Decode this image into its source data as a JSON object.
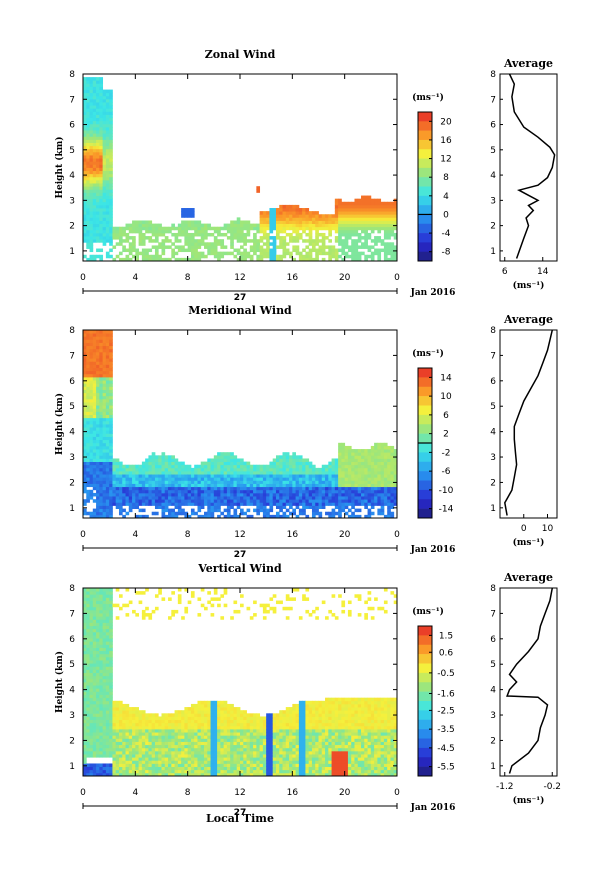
{
  "page": {
    "bottom_label": "Local Time",
    "day_label": "27",
    "month_label": "Jan 2016"
  },
  "chart_data": [
    {
      "type": "heatmap",
      "title": "Zonal Wind",
      "ylabel": "Height (km)",
      "unit_label": "(ms⁻¹)",
      "x_ticks": [
        "0",
        "4",
        "8",
        "12",
        "16",
        "20",
        "0"
      ],
      "xlim": [
        0,
        24
      ],
      "y_ticks": [
        "1",
        "2",
        "3",
        "4",
        "5",
        "6",
        "7",
        "8"
      ],
      "ylim": [
        0.6,
        8
      ],
      "colorbar": {
        "ticks": [
          "20",
          "16",
          "12",
          "8",
          "4",
          "0",
          "-4",
          "-8"
        ],
        "range": [
          -10,
          22
        ],
        "zero_line": 0
      },
      "average": {
        "title": "Average",
        "x_ticks": [
          "6",
          "14"
        ],
        "xlabel": "(ms⁻¹)",
        "xlim": [
          5,
          17
        ],
        "profile": [
          [
            0.7,
            8.5
          ],
          [
            1.5,
            10
          ],
          [
            2.0,
            11
          ],
          [
            2.3,
            10.5
          ],
          [
            2.6,
            12
          ],
          [
            2.8,
            11
          ],
          [
            3.0,
            13
          ],
          [
            3.2,
            11
          ],
          [
            3.4,
            9
          ],
          [
            3.6,
            13
          ],
          [
            3.9,
            15
          ],
          [
            4.3,
            16
          ],
          [
            4.8,
            16.5
          ],
          [
            5.1,
            15.5
          ],
          [
            5.5,
            13
          ],
          [
            5.9,
            10
          ],
          [
            6.5,
            8
          ],
          [
            7.1,
            7.5
          ],
          [
            7.6,
            8
          ],
          [
            8.0,
            7
          ]
        ]
      }
    },
    {
      "type": "heatmap",
      "title": "Meridional Wind",
      "ylabel": "Height (km)",
      "unit_label": "(ms⁻¹)",
      "x_ticks": [
        "0",
        "4",
        "8",
        "12",
        "16",
        "20",
        "0"
      ],
      "xlim": [
        0,
        24
      ],
      "y_ticks": [
        "1",
        "2",
        "3",
        "4",
        "5",
        "6",
        "7",
        "8"
      ],
      "ylim": [
        0.6,
        8
      ],
      "colorbar": {
        "ticks": [
          "14",
          "10",
          "6",
          "2",
          "-2",
          "-6",
          "-10",
          "-14"
        ],
        "range": [
          -16,
          16
        ],
        "zero_line": 0
      },
      "average": {
        "title": "Average",
        "x_ticks": [
          "0",
          "10"
        ],
        "xlabel": "(ms⁻¹)",
        "xlim": [
          -10,
          14
        ],
        "profile": [
          [
            0.7,
            -7
          ],
          [
            1.2,
            -8
          ],
          [
            1.7,
            -5
          ],
          [
            2.2,
            -4
          ],
          [
            2.7,
            -3
          ],
          [
            3.2,
            -3.5
          ],
          [
            3.7,
            -4
          ],
          [
            4.2,
            -4
          ],
          [
            4.7,
            -2
          ],
          [
            5.2,
            0
          ],
          [
            5.7,
            3
          ],
          [
            6.2,
            6
          ],
          [
            6.7,
            8
          ],
          [
            7.2,
            10
          ],
          [
            7.6,
            11
          ],
          [
            8.0,
            12
          ]
        ]
      }
    },
    {
      "type": "heatmap",
      "title": "Vertical Wind",
      "ylabel": "Height (km)",
      "unit_label": "(ms⁻¹)",
      "x_ticks": [
        "0",
        "4",
        "8",
        "12",
        "16",
        "20",
        "0"
      ],
      "xlim": [
        0,
        24
      ],
      "y_ticks": [
        "1",
        "2",
        "3",
        "4",
        "5",
        "6",
        "7",
        "8"
      ],
      "ylim": [
        0.6,
        8
      ],
      "colorbar": {
        "ticks": [
          "1.5",
          "0.6",
          "-0.5",
          "-1.6",
          "-2.5",
          "-3.5",
          "-4.5",
          "-5.5"
        ],
        "range": [
          -6,
          2
        ],
        "zero_line": null
      },
      "average": {
        "title": "Average",
        "x_ticks": [
          "-1.2",
          "-0.2"
        ],
        "xlabel": "(ms⁻¹)",
        "xlim": [
          -1.3,
          -0.1
        ],
        "profile": [
          [
            0.7,
            -1.1
          ],
          [
            1.0,
            -1.05
          ],
          [
            1.5,
            -0.7
          ],
          [
            2.0,
            -0.5
          ],
          [
            2.5,
            -0.45
          ],
          [
            3.0,
            -0.35
          ],
          [
            3.4,
            -0.3
          ],
          [
            3.7,
            -0.5
          ],
          [
            3.75,
            -1.15
          ],
          [
            4.0,
            -1.1
          ],
          [
            4.3,
            -0.95
          ],
          [
            4.6,
            -1.1
          ],
          [
            5.0,
            -0.95
          ],
          [
            5.5,
            -0.7
          ],
          [
            6.0,
            -0.5
          ],
          [
            6.5,
            -0.45
          ],
          [
            7.0,
            -0.35
          ],
          [
            7.5,
            -0.25
          ],
          [
            8.0,
            -0.2
          ]
        ]
      }
    }
  ]
}
